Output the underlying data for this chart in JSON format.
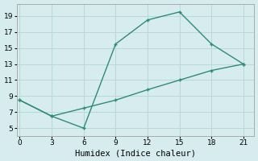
{
  "xlabel": "Humidex (Indice chaleur)",
  "line1_x": [
    0,
    3,
    6,
    9,
    12,
    15,
    18,
    21
  ],
  "line1_y": [
    8.5,
    6.5,
    5.0,
    15.5,
    18.5,
    19.5,
    15.5,
    13.0
  ],
  "line2_x": [
    0,
    3,
    6,
    9,
    12,
    15,
    18,
    21
  ],
  "line2_y": [
    8.5,
    6.5,
    7.5,
    8.5,
    9.8,
    11.0,
    12.2,
    13.0
  ],
  "line_color": "#2e8b7a",
  "bg_color": "#d6ecee",
  "grid_color": "#b8d8da",
  "xlim": [
    -0.3,
    22.0
  ],
  "ylim": [
    4.0,
    20.5
  ],
  "xticks": [
    0,
    3,
    6,
    9,
    12,
    15,
    18,
    21
  ],
  "yticks": [
    5,
    7,
    9,
    11,
    13,
    15,
    17,
    19
  ],
  "markersize": 3.0,
  "linewidth": 1.0,
  "tick_fontsize": 6.5,
  "xlabel_fontsize": 7.5
}
